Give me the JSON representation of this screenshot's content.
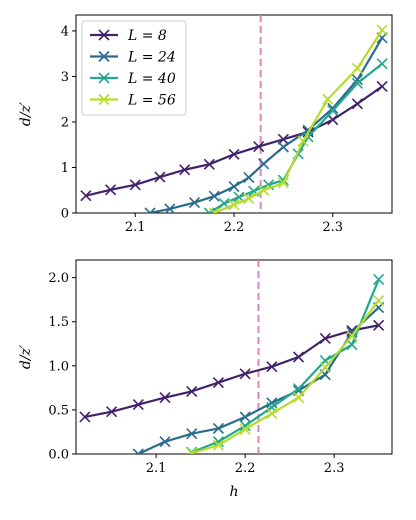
{
  "chart_data": [
    {
      "type": "line",
      "xlabel": "",
      "ylabel": "d/z′",
      "xlim": [
        2.04,
        2.36
      ],
      "ylim": [
        0,
        4.35
      ],
      "xticks": [
        "2.1",
        "2.2",
        "2.3"
      ],
      "xtick_values": [
        2.1,
        2.2,
        2.3
      ],
      "yticks": [
        "0",
        "1",
        "2",
        "3",
        "4"
      ],
      "ytick_values": [
        0,
        1,
        2,
        3,
        4
      ],
      "vline": 2.227,
      "vline_color": "#d987c4",
      "legend_position": "top-left",
      "series": [
        {
          "name": "L = 8",
          "color": "#41226b",
          "x": [
            2.05,
            2.075,
            2.1,
            2.125,
            2.15,
            2.175,
            2.2,
            2.225,
            2.25,
            2.275,
            2.3,
            2.325,
            2.35
          ],
          "y": [
            0.38,
            0.51,
            0.62,
            0.79,
            0.95,
            1.07,
            1.29,
            1.46,
            1.62,
            1.78,
            2.05,
            2.4,
            2.78
          ]
        },
        {
          "name": "L = 24",
          "color": "#2a6c8d",
          "x": [
            2.115,
            2.135,
            2.16,
            2.18,
            2.2,
            2.215,
            2.23,
            2.25,
            2.275,
            2.3,
            2.325,
            2.35
          ],
          "y": [
            0.0,
            0.09,
            0.23,
            0.37,
            0.58,
            0.78,
            1.08,
            1.45,
            1.82,
            2.3,
            2.93,
            3.85
          ]
        },
        {
          "name": "L = 40",
          "color": "#23a88c",
          "x": [
            2.175,
            2.19,
            2.205,
            2.22,
            2.235,
            2.25,
            2.265,
            2.275,
            2.3,
            2.325,
            2.35
          ],
          "y": [
            0.0,
            0.21,
            0.35,
            0.48,
            0.62,
            0.72,
            1.3,
            1.67,
            2.25,
            2.85,
            3.28
          ]
        },
        {
          "name": "L = 56",
          "color": "#b4dd2b",
          "x": [
            2.18,
            2.2,
            2.215,
            2.23,
            2.25,
            2.27,
            2.295,
            2.325,
            2.35
          ],
          "y": [
            0.0,
            0.18,
            0.32,
            0.5,
            0.66,
            1.58,
            2.5,
            3.18,
            4.02
          ]
        }
      ]
    },
    {
      "type": "line",
      "xlabel": "h",
      "ylabel": "d/z′",
      "xlim": [
        2.01,
        2.365
      ],
      "ylim": [
        0,
        2.2
      ],
      "xticks": [
        "2.1",
        "2.2",
        "2.3"
      ],
      "xtick_values": [
        2.1,
        2.2,
        2.3
      ],
      "yticks": [
        "0.0",
        "0.5",
        "1.0",
        "1.5",
        "2.0"
      ],
      "ytick_values": [
        0.0,
        0.5,
        1.0,
        1.5,
        2.0
      ],
      "vline": 2.215,
      "vline_color": "#d987c4",
      "series": [
        {
          "name": "L = 8",
          "color": "#41226b",
          "x": [
            2.02,
            2.05,
            2.08,
            2.11,
            2.14,
            2.17,
            2.2,
            2.23,
            2.26,
            2.29,
            2.32,
            2.35
          ],
          "y": [
            0.42,
            0.48,
            0.56,
            0.64,
            0.71,
            0.81,
            0.91,
            0.99,
            1.1,
            1.31,
            1.4,
            1.46
          ]
        },
        {
          "name": "L = 24",
          "color": "#2a6c8d",
          "x": [
            2.08,
            2.11,
            2.14,
            2.17,
            2.2,
            2.23,
            2.26,
            2.29,
            2.32,
            2.35
          ],
          "y": [
            0.0,
            0.14,
            0.23,
            0.29,
            0.42,
            0.58,
            0.72,
            0.9,
            1.38,
            1.66
          ]
        },
        {
          "name": "L = 40",
          "color": "#23a88c",
          "x": [
            2.14,
            2.17,
            2.2,
            2.23,
            2.26,
            2.29,
            2.32,
            2.35
          ],
          "y": [
            0.02,
            0.14,
            0.32,
            0.53,
            0.74,
            1.06,
            1.24,
            1.98
          ]
        },
        {
          "name": "L = 56",
          "color": "#b4dd2b",
          "x": [
            2.14,
            2.17,
            2.2,
            2.23,
            2.26,
            2.29,
            2.32,
            2.35
          ],
          "y": [
            0.01,
            0.1,
            0.28,
            0.46,
            0.64,
            0.98,
            1.34,
            1.74
          ]
        }
      ]
    }
  ]
}
